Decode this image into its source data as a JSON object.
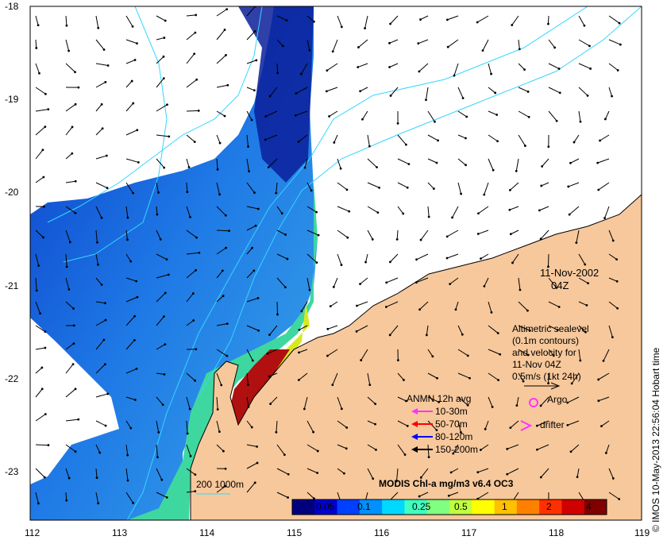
{
  "axes": {
    "lat_ticks": [
      "-18",
      "-19",
      "-20",
      "-21",
      "-22",
      "-23"
    ],
    "lon_ticks": [
      "112",
      "113",
      "114",
      "115",
      "116",
      "117",
      "118",
      "119"
    ],
    "lon_range": [
      112,
      119
    ],
    "lat_range": [
      -23.5,
      -18
    ]
  },
  "date": {
    "line1": "11-Nov-2002",
    "line2": "04Z"
  },
  "altimetry_note": [
    "Altimetric sealevel",
    "(0.1m contours)",
    "and velocity for",
    "11-Nov 04Z",
    "0.5m/s (1kt 24h)"
  ],
  "anmn": {
    "title": "ANMN 12h avg",
    "items": [
      {
        "label": "10-30m",
        "color": "#ff33ff"
      },
      {
        "label": "50-70m",
        "color": "#ff0000"
      },
      {
        "label": "80-120m",
        "color": "#0000ff"
      },
      {
        "label": "150-200m",
        "color": "#000000"
      }
    ]
  },
  "argo": {
    "label": "Argo",
    "color": "#ff33ff"
  },
  "drifter": {
    "label": "drifter",
    "color": "#ff33ff"
  },
  "depth_legend": "200  1000m",
  "colorbar": {
    "title": "MODIS Chl-a mg/m3 v6.4 OC3",
    "ticks": [
      "0.05",
      "0.1",
      "0.25",
      "0.5",
      "1",
      "2",
      "4"
    ],
    "colors": [
      "#00007f",
      "#0000d0",
      "#0040ff",
      "#0090ff",
      "#00d8ff",
      "#40ffc0",
      "#80ff80",
      "#c0ff40",
      "#ffff00",
      "#ffc000",
      "#ff8000",
      "#ff3000",
      "#d00000",
      "#800000"
    ]
  },
  "credit": "© IMOS 10-May-2013 22:56:04 Hobart time",
  "colors": {
    "land": "#f7c89b",
    "cloud": "#ffffff",
    "contour": "#33d6ff"
  }
}
